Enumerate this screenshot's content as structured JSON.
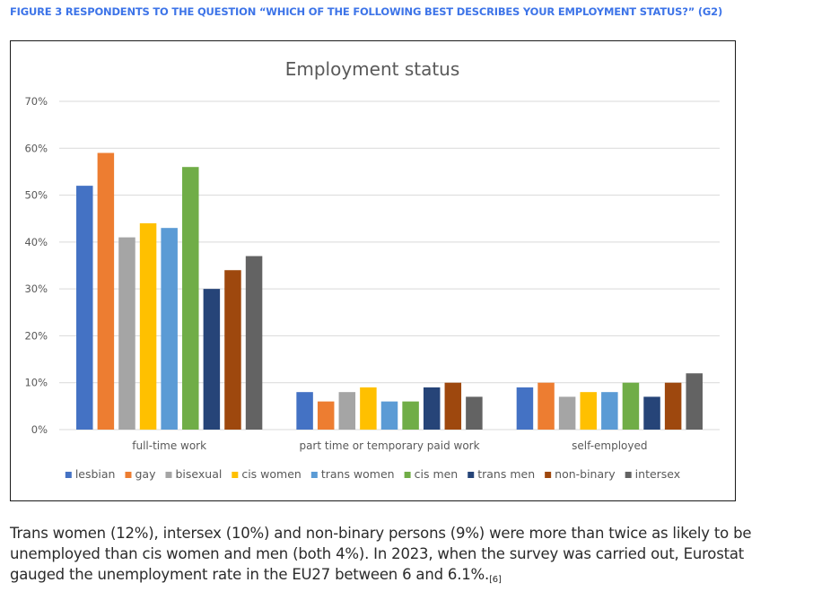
{
  "figure_caption": "FIGURE 3 RESPONDENTS TO THE QUESTION “WHICH OF THE FOLLOWING BEST DESCRIBES YOUR EMPLOYMENT STATUS?” (G2)",
  "body": {
    "lines": [
      "Trans women (12%), intersex (10%) and non-binary persons (9%) were more than twice as likely to be",
      "unemployed than cis women and men (both 4%). In 2023, when the survey was carried out, Eurostat",
      "gauged the unemployment rate in the EU27 between 6 and 6.1%."
    ],
    "footnote_ref": "[6]"
  },
  "chart_data": {
    "type": "bar",
    "title": "Employment status",
    "xlabel": "",
    "ylabel": "",
    "ylim": [
      0,
      70
    ],
    "yticks": [
      0,
      10,
      20,
      30,
      40,
      50,
      60,
      70
    ],
    "ytick_labels": [
      "0%",
      "10%",
      "20%",
      "30%",
      "40%",
      "50%",
      "60%",
      "70%"
    ],
    "grid": true,
    "legend_position": "bottom",
    "categories": [
      "full-time work",
      "part time or temporary paid work",
      "self-employed"
    ],
    "series": [
      {
        "name": "lesbian",
        "color": "#4472c4",
        "values": [
          52,
          8,
          9
        ]
      },
      {
        "name": "gay",
        "color": "#ed7d31",
        "values": [
          59,
          6,
          10
        ]
      },
      {
        "name": "bisexual",
        "color": "#a5a5a5",
        "values": [
          41,
          8,
          7
        ]
      },
      {
        "name": "cis women",
        "color": "#ffc000",
        "values": [
          44,
          9,
          8
        ]
      },
      {
        "name": "trans women",
        "color": "#5b9bd5",
        "values": [
          43,
          6,
          8
        ]
      },
      {
        "name": "cis men",
        "color": "#70ad47",
        "values": [
          56,
          6,
          10
        ]
      },
      {
        "name": "trans men",
        "color": "#264478",
        "values": [
          30,
          9,
          7
        ]
      },
      {
        "name": "non-binary",
        "color": "#9e480e",
        "values": [
          34,
          10,
          10
        ]
      },
      {
        "name": "intersex",
        "color": "#636363",
        "values": [
          37,
          7,
          12
        ]
      }
    ]
  }
}
